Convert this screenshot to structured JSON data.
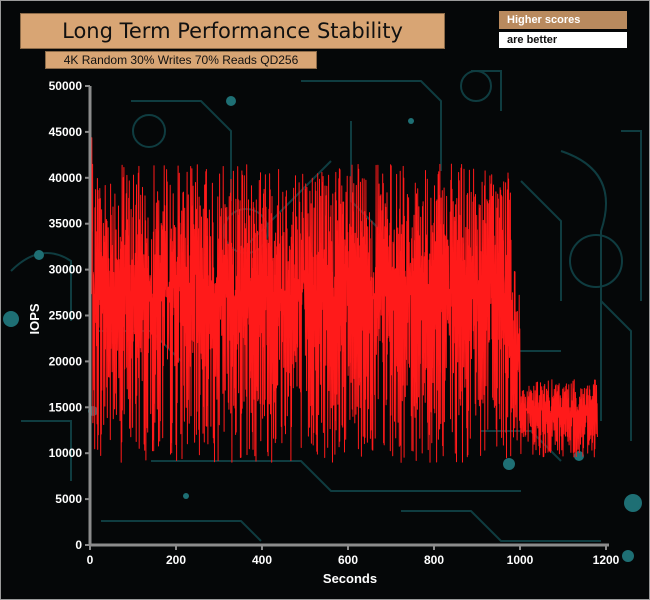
{
  "chart_data": {
    "type": "line",
    "title": "Long Term Performance Stability",
    "subtitle": "4K Random 30% Writes 70% Reads QD256",
    "note_line1": "Higher scores",
    "note_line2": "are better",
    "xlabel": "Seconds",
    "ylabel": "IOPS",
    "xlim": [
      0,
      1200
    ],
    "ylim": [
      0,
      50000
    ],
    "x_ticks": [
      0,
      200,
      400,
      600,
      800,
      1000,
      1200
    ],
    "y_ticks": [
      0,
      5000,
      10000,
      15000,
      20000,
      25000,
      30000,
      35000,
      40000,
      45000,
      50000
    ],
    "grid": false,
    "series": [
      {
        "color": "#ff1a1a",
        "segments": [
          {
            "x_start": 0,
            "x_end": 6,
            "low": 18000,
            "high": 46000
          },
          {
            "x_start": 6,
            "x_end": 980,
            "low": 9000,
            "high": 41500
          },
          {
            "x_start": 980,
            "x_end": 1000,
            "low": 10000,
            "high": 30000
          },
          {
            "x_start": 1000,
            "x_end": 1180,
            "low": 9500,
            "high": 18000
          }
        ]
      }
    ]
  }
}
